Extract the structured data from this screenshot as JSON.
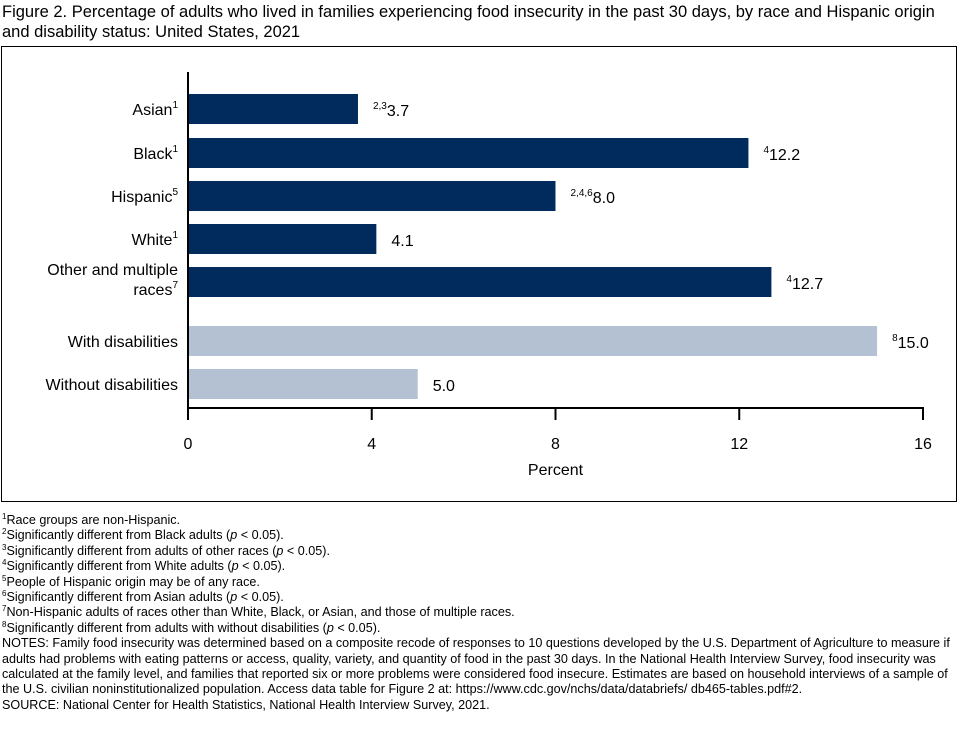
{
  "title": "Figure 2. Percentage of adults who lived in families experiencing food insecurity in the past 30 days, by race and Hispanic origin and disability status: United States, 2021",
  "chart_data": {
    "type": "bar",
    "orientation": "horizontal",
    "categories": [
      {
        "label": "Asian",
        "sup": "1"
      },
      {
        "label": "Black",
        "sup": "1"
      },
      {
        "label": "Hispanic",
        "sup": "5"
      },
      {
        "label": "White",
        "sup": "1"
      },
      {
        "label": "Other and multiple races",
        "sup": "7"
      },
      {
        "label": "With disabilities",
        "sup": ""
      },
      {
        "label": "Without disabilities",
        "sup": ""
      }
    ],
    "values": [
      3.7,
      12.2,
      8.0,
      4.1,
      12.7,
      15.0,
      5.0
    ],
    "value_labels": [
      "3.7",
      "12.2",
      "8.0",
      "4.1",
      "12.7",
      "15.0",
      "5.0"
    ],
    "value_sups": [
      "2,3",
      "4",
      "2,4,6",
      "",
      "4",
      "8",
      ""
    ],
    "groups": [
      "race",
      "race",
      "race",
      "race",
      "race",
      "disability",
      "disability"
    ],
    "colors": {
      "race": "#002b5c",
      "disability": "#b3c1d3"
    },
    "xlabel": "Percent",
    "xlim": [
      0,
      16
    ],
    "xticks": [
      "0",
      "4",
      "8",
      "12",
      "16"
    ],
    "grid": false
  },
  "footnotes": [
    {
      "sup": "1",
      "pre": "Race groups are non-Hispanic.",
      "p": "",
      "post": ""
    },
    {
      "sup": "2",
      "pre": "Significantly different from Black adults (",
      "p": "p",
      "post": " < 0.05)."
    },
    {
      "sup": "3",
      "pre": "Significantly different from adults of other races (",
      "p": "p",
      "post": " < 0.05)."
    },
    {
      "sup": "4",
      "pre": "Significantly different from White adults (",
      "p": "p",
      "post": " < 0.05)."
    },
    {
      "sup": "5",
      "pre": "People of Hispanic origin may be of any race.",
      "p": "",
      "post": ""
    },
    {
      "sup": "6",
      "pre": "Significantly different from Asian adults (",
      "p": "p",
      "post": " < 0.05)."
    },
    {
      "sup": "7",
      "pre": "Non-Hispanic adults of races other than White, Black, or Asian, and those of multiple races.",
      "p": "",
      "post": ""
    },
    {
      "sup": "8",
      "pre": "Significantly different from adults with without disabilities (",
      "p": "p",
      "post": " < 0.05)."
    }
  ],
  "notes": "NOTES: Family food insecurity was determined based on a composite recode of responses to 10 questions developed by the U.S. Department of Agriculture to measure if adults had problems with eating patterns or access, quality, variety, and quantity of food in the past 30 days. In the National Health Interview Survey, food insecurity was calculated at the family level, and families that reported six or more problems were considered food insecure. Estimates are based on household interviews of a sample of the U.S. civilian noninstitutionalized population. Access data table for Figure 2 at: https://www.cdc.gov/nchs/data/databriefs/ db465-tables.pdf#2.",
  "source": "SOURCE: National Center for Health Statistics, National Health Interview Survey, 2021."
}
